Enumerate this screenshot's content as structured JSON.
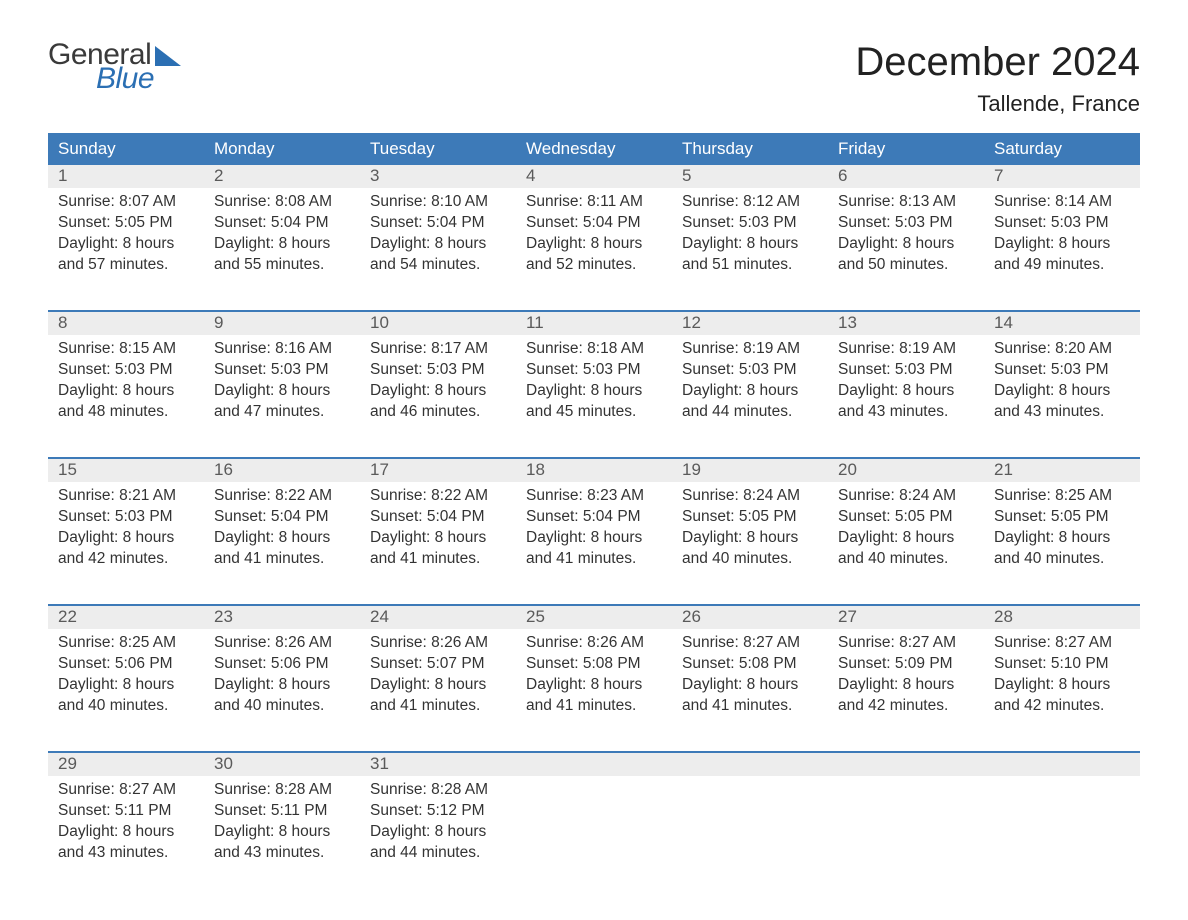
{
  "logo": {
    "word1": "General",
    "word2": "Blue"
  },
  "title": "December 2024",
  "location": "Tallende, France",
  "colors": {
    "header_bg": "#3d7ab8",
    "header_text": "#ffffff",
    "daynum_bg": "#ededed",
    "daynum_text": "#5a5a5a",
    "body_text": "#333333",
    "accent": "#2b6fb3",
    "logo_gray": "#3a3a3a",
    "week_border": "#3d7ab8",
    "page_bg": "#ffffff"
  },
  "fonts": {
    "title_size_pt": 30,
    "location_size_pt": 17,
    "dow_size_pt": 13,
    "daynum_size_pt": 13,
    "body_size_pt": 12
  },
  "days_of_week": [
    "Sunday",
    "Monday",
    "Tuesday",
    "Wednesday",
    "Thursday",
    "Friday",
    "Saturday"
  ],
  "weeks": [
    {
      "nums": [
        "1",
        "2",
        "3",
        "4",
        "5",
        "6",
        "7"
      ],
      "cells": [
        {
          "sunrise": "Sunrise: 8:07 AM",
          "sunset": "Sunset: 5:05 PM",
          "d1": "Daylight: 8 hours",
          "d2": "and 57 minutes."
        },
        {
          "sunrise": "Sunrise: 8:08 AM",
          "sunset": "Sunset: 5:04 PM",
          "d1": "Daylight: 8 hours",
          "d2": "and 55 minutes."
        },
        {
          "sunrise": "Sunrise: 8:10 AM",
          "sunset": "Sunset: 5:04 PM",
          "d1": "Daylight: 8 hours",
          "d2": "and 54 minutes."
        },
        {
          "sunrise": "Sunrise: 8:11 AM",
          "sunset": "Sunset: 5:04 PM",
          "d1": "Daylight: 8 hours",
          "d2": "and 52 minutes."
        },
        {
          "sunrise": "Sunrise: 8:12 AM",
          "sunset": "Sunset: 5:03 PM",
          "d1": "Daylight: 8 hours",
          "d2": "and 51 minutes."
        },
        {
          "sunrise": "Sunrise: 8:13 AM",
          "sunset": "Sunset: 5:03 PM",
          "d1": "Daylight: 8 hours",
          "d2": "and 50 minutes."
        },
        {
          "sunrise": "Sunrise: 8:14 AM",
          "sunset": "Sunset: 5:03 PM",
          "d1": "Daylight: 8 hours",
          "d2": "and 49 minutes."
        }
      ]
    },
    {
      "nums": [
        "8",
        "9",
        "10",
        "11",
        "12",
        "13",
        "14"
      ],
      "cells": [
        {
          "sunrise": "Sunrise: 8:15 AM",
          "sunset": "Sunset: 5:03 PM",
          "d1": "Daylight: 8 hours",
          "d2": "and 48 minutes."
        },
        {
          "sunrise": "Sunrise: 8:16 AM",
          "sunset": "Sunset: 5:03 PM",
          "d1": "Daylight: 8 hours",
          "d2": "and 47 minutes."
        },
        {
          "sunrise": "Sunrise: 8:17 AM",
          "sunset": "Sunset: 5:03 PM",
          "d1": "Daylight: 8 hours",
          "d2": "and 46 minutes."
        },
        {
          "sunrise": "Sunrise: 8:18 AM",
          "sunset": "Sunset: 5:03 PM",
          "d1": "Daylight: 8 hours",
          "d2": "and 45 minutes."
        },
        {
          "sunrise": "Sunrise: 8:19 AM",
          "sunset": "Sunset: 5:03 PM",
          "d1": "Daylight: 8 hours",
          "d2": "and 44 minutes."
        },
        {
          "sunrise": "Sunrise: 8:19 AM",
          "sunset": "Sunset: 5:03 PM",
          "d1": "Daylight: 8 hours",
          "d2": "and 43 minutes."
        },
        {
          "sunrise": "Sunrise: 8:20 AM",
          "sunset": "Sunset: 5:03 PM",
          "d1": "Daylight: 8 hours",
          "d2": "and 43 minutes."
        }
      ]
    },
    {
      "nums": [
        "15",
        "16",
        "17",
        "18",
        "19",
        "20",
        "21"
      ],
      "cells": [
        {
          "sunrise": "Sunrise: 8:21 AM",
          "sunset": "Sunset: 5:03 PM",
          "d1": "Daylight: 8 hours",
          "d2": "and 42 minutes."
        },
        {
          "sunrise": "Sunrise: 8:22 AM",
          "sunset": "Sunset: 5:04 PM",
          "d1": "Daylight: 8 hours",
          "d2": "and 41 minutes."
        },
        {
          "sunrise": "Sunrise: 8:22 AM",
          "sunset": "Sunset: 5:04 PM",
          "d1": "Daylight: 8 hours",
          "d2": "and 41 minutes."
        },
        {
          "sunrise": "Sunrise: 8:23 AM",
          "sunset": "Sunset: 5:04 PM",
          "d1": "Daylight: 8 hours",
          "d2": "and 41 minutes."
        },
        {
          "sunrise": "Sunrise: 8:24 AM",
          "sunset": "Sunset: 5:05 PM",
          "d1": "Daylight: 8 hours",
          "d2": "and 40 minutes."
        },
        {
          "sunrise": "Sunrise: 8:24 AM",
          "sunset": "Sunset: 5:05 PM",
          "d1": "Daylight: 8 hours",
          "d2": "and 40 minutes."
        },
        {
          "sunrise": "Sunrise: 8:25 AM",
          "sunset": "Sunset: 5:05 PM",
          "d1": "Daylight: 8 hours",
          "d2": "and 40 minutes."
        }
      ]
    },
    {
      "nums": [
        "22",
        "23",
        "24",
        "25",
        "26",
        "27",
        "28"
      ],
      "cells": [
        {
          "sunrise": "Sunrise: 8:25 AM",
          "sunset": "Sunset: 5:06 PM",
          "d1": "Daylight: 8 hours",
          "d2": "and 40 minutes."
        },
        {
          "sunrise": "Sunrise: 8:26 AM",
          "sunset": "Sunset: 5:06 PM",
          "d1": "Daylight: 8 hours",
          "d2": "and 40 minutes."
        },
        {
          "sunrise": "Sunrise: 8:26 AM",
          "sunset": "Sunset: 5:07 PM",
          "d1": "Daylight: 8 hours",
          "d2": "and 41 minutes."
        },
        {
          "sunrise": "Sunrise: 8:26 AM",
          "sunset": "Sunset: 5:08 PM",
          "d1": "Daylight: 8 hours",
          "d2": "and 41 minutes."
        },
        {
          "sunrise": "Sunrise: 8:27 AM",
          "sunset": "Sunset: 5:08 PM",
          "d1": "Daylight: 8 hours",
          "d2": "and 41 minutes."
        },
        {
          "sunrise": "Sunrise: 8:27 AM",
          "sunset": "Sunset: 5:09 PM",
          "d1": "Daylight: 8 hours",
          "d2": "and 42 minutes."
        },
        {
          "sunrise": "Sunrise: 8:27 AM",
          "sunset": "Sunset: 5:10 PM",
          "d1": "Daylight: 8 hours",
          "d2": "and 42 minutes."
        }
      ]
    },
    {
      "nums": [
        "29",
        "30",
        "31",
        "",
        "",
        "",
        ""
      ],
      "cells": [
        {
          "sunrise": "Sunrise: 8:27 AM",
          "sunset": "Sunset: 5:11 PM",
          "d1": "Daylight: 8 hours",
          "d2": "and 43 minutes."
        },
        {
          "sunrise": "Sunrise: 8:28 AM",
          "sunset": "Sunset: 5:11 PM",
          "d1": "Daylight: 8 hours",
          "d2": "and 43 minutes."
        },
        {
          "sunrise": "Sunrise: 8:28 AM",
          "sunset": "Sunset: 5:12 PM",
          "d1": "Daylight: 8 hours",
          "d2": "and 44 minutes."
        },
        null,
        null,
        null,
        null
      ]
    }
  ]
}
